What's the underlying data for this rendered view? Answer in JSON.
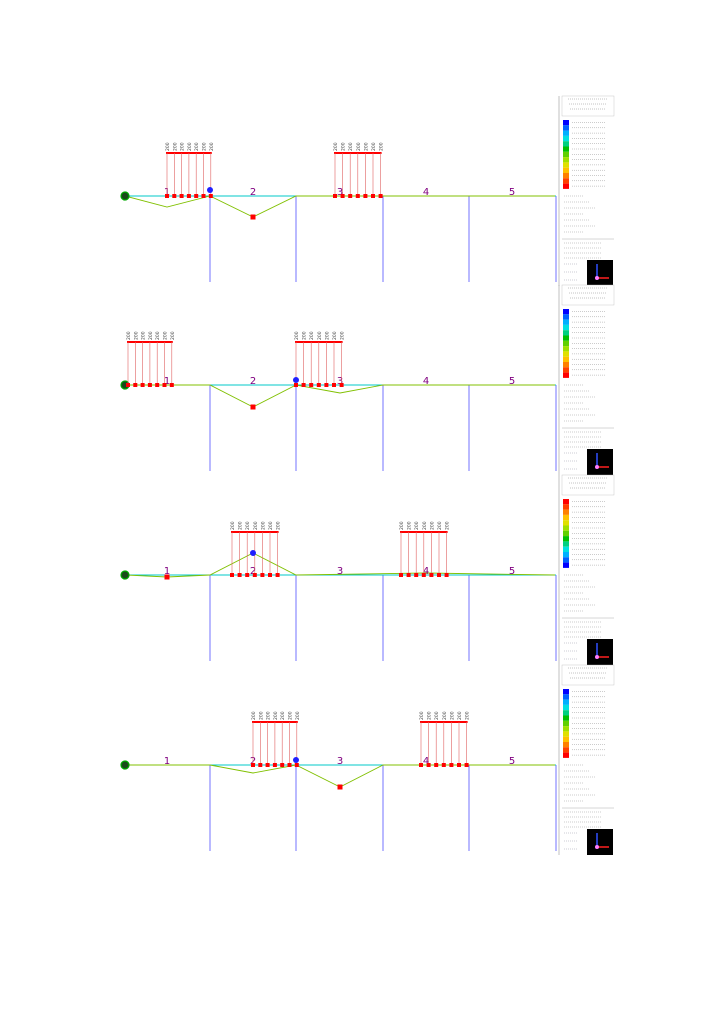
{
  "panels": [
    {
      "span_labels": [
        "1",
        "2",
        "3",
        "4",
        "5"
      ],
      "load_groups": [
        {
          "labels": [
            "200",
            "200",
            "200",
            "200",
            "200",
            "200",
            "200"
          ]
        },
        {
          "labels": [
            "200",
            "200",
            "200",
            "200",
            "200",
            "200",
            "200"
          ]
        }
      ],
      "legend": {
        "scale_order": "max-top",
        "top_color": "#0000ff",
        "bottom_color": "#ff0000"
      }
    },
    {
      "span_labels": [
        "1",
        "2",
        "3",
        "4",
        "5"
      ],
      "load_groups": [
        {
          "labels": [
            "200",
            "200",
            "200",
            "200",
            "200",
            "200",
            "200"
          ]
        },
        {
          "labels": [
            "200",
            "200",
            "200",
            "200",
            "200",
            "200",
            "200"
          ]
        }
      ],
      "legend": {
        "scale_order": "max-top",
        "top_color": "#0000ff",
        "bottom_color": "#ff0000"
      }
    },
    {
      "span_labels": [
        "1",
        "2",
        "3",
        "4",
        "5"
      ],
      "load_groups": [
        {
          "labels": [
            "200",
            "200",
            "200",
            "200",
            "200",
            "200",
            "200"
          ]
        },
        {
          "labels": [
            "200",
            "200",
            "200",
            "200",
            "200",
            "200",
            "200"
          ]
        }
      ],
      "legend": {
        "scale_order": "max-bottom",
        "top_color": "#ff0000",
        "bottom_color": "#0000ff"
      }
    },
    {
      "span_labels": [
        "1",
        "2",
        "3",
        "4",
        "5"
      ],
      "load_groups": [
        {
          "labels": [
            "200",
            "200",
            "200",
            "200",
            "200",
            "200",
            "200"
          ]
        },
        {
          "labels": [
            "200",
            "200",
            "200",
            "200",
            "200",
            "200",
            "200"
          ]
        }
      ],
      "legend": {
        "scale_order": "max-top",
        "top_color": "#0000ff",
        "bottom_color": "#ff0000"
      }
    }
  ],
  "colors": {
    "beam": "#00c8c8",
    "pier": "#5050ff",
    "load": "#ff0000",
    "span_label": "#800080",
    "deflection_pos": "#80c000",
    "deflection_neg": "#ffc000",
    "legend_ramp": [
      "#0000ff",
      "#0060ff",
      "#00b0ff",
      "#00e0e0",
      "#00d080",
      "#00c000",
      "#60d000",
      "#a0e000",
      "#e0e000",
      "#ffc000",
      "#ff8000",
      "#ff4000",
      "#ff0000"
    ]
  },
  "icons": [
    "support-icon",
    "axis-triad-icon",
    "max-marker-icon",
    "min-marker-icon"
  ]
}
